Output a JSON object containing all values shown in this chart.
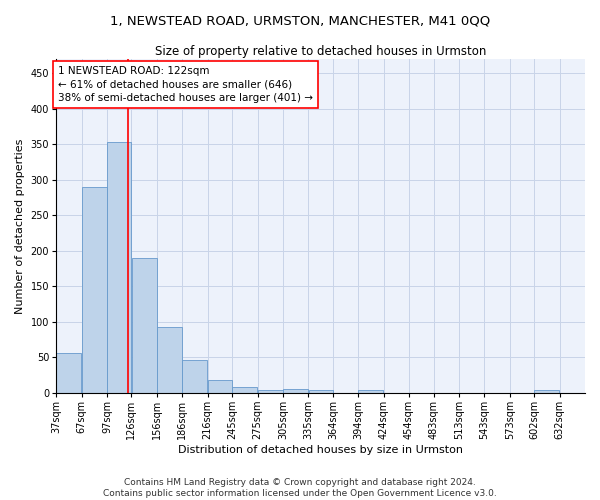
{
  "title": "1, NEWSTEAD ROAD, URMSTON, MANCHESTER, M41 0QQ",
  "subtitle": "Size of property relative to detached houses in Urmston",
  "xlabel": "Distribution of detached houses by size in Urmston",
  "ylabel": "Number of detached properties",
  "bar_color": "#bed3ea",
  "bar_edge_color": "#6699cc",
  "grid_color": "#c8d4e8",
  "background_color": "#edf2fb",
  "vline_x": 122,
  "vline_color": "red",
  "annotation_text": "1 NEWSTEAD ROAD: 122sqm\n← 61% of detached houses are smaller (646)\n38% of semi-detached houses are larger (401) →",
  "annotation_box_color": "white",
  "annotation_edge_color": "red",
  "categories": [
    "37sqm",
    "67sqm",
    "97sqm",
    "126sqm",
    "156sqm",
    "186sqm",
    "216sqm",
    "245sqm",
    "275sqm",
    "305sqm",
    "335sqm",
    "364sqm",
    "394sqm",
    "424sqm",
    "454sqm",
    "483sqm",
    "513sqm",
    "543sqm",
    "573sqm",
    "602sqm",
    "632sqm"
  ],
  "bin_edges": [
    37,
    67,
    97,
    126,
    156,
    186,
    216,
    245,
    275,
    305,
    335,
    364,
    394,
    424,
    454,
    483,
    513,
    543,
    573,
    602,
    632,
    662
  ],
  "values": [
    57,
    290,
    353,
    190,
    93,
    47,
    19,
    8,
    4,
    5,
    4,
    0,
    4,
    0,
    0,
    0,
    0,
    0,
    0,
    4,
    0
  ],
  "ylim": [
    0,
    470
  ],
  "yticks": [
    0,
    50,
    100,
    150,
    200,
    250,
    300,
    350,
    400,
    450
  ],
  "footer_text": "Contains HM Land Registry data © Crown copyright and database right 2024.\nContains public sector information licensed under the Open Government Licence v3.0.",
  "title_fontsize": 9.5,
  "subtitle_fontsize": 8.5,
  "axis_label_fontsize": 8,
  "tick_fontsize": 7,
  "footer_fontsize": 6.5,
  "annotation_fontsize": 7.5
}
